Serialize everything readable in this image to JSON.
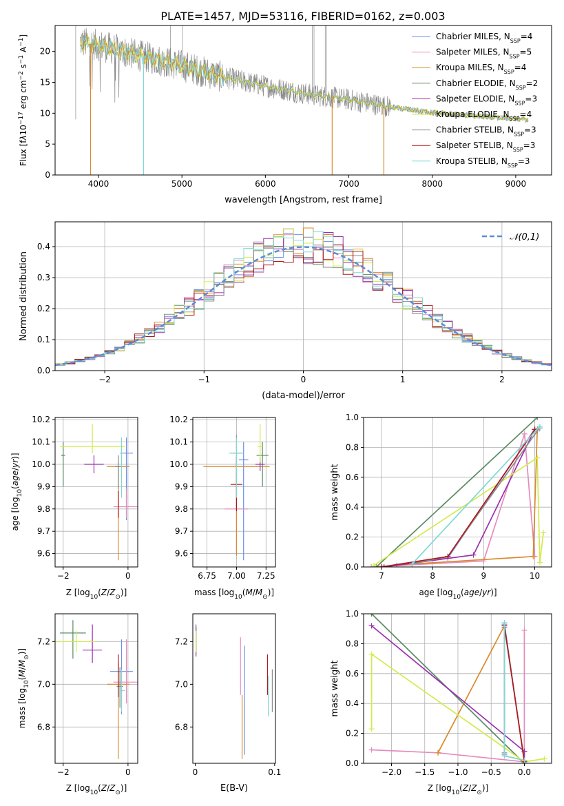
{
  "figure_title": "PLATE=1457, MJD=53116, FIBERID=0162, z=0.003",
  "colors": {
    "Chabrier MILES": "#6c8fe8",
    "Salpeter MILES": "#e58bbd",
    "Kroupa MILES": "#d98a2e",
    "Chabrier ELODIE": "#5a8a64",
    "Salpeter ELODIE": "#9b2fb0",
    "Kroupa ELODIE": "#d4ea4a",
    "Chabrier STELIB": "#8a8a8a",
    "Salpeter STELIB": "#b01a1a",
    "Kroupa STELIB": "#7fd8d4",
    "normal": "#5b8bd9",
    "grid": "#b0b0b0"
  },
  "legend_main": [
    {
      "name": "Chabrier MILES",
      "n": "4"
    },
    {
      "name": "Salpeter MILES",
      "n": "5"
    },
    {
      "name": "Kroupa MILES",
      "n": "4"
    },
    {
      "name": "Chabrier ELODIE",
      "n": "2"
    },
    {
      "name": "Salpeter ELODIE",
      "n": "3"
    },
    {
      "name": "Kroupa ELODIE",
      "n": "4"
    },
    {
      "name": "Chabrier STELIB",
      "n": "3"
    },
    {
      "name": "Salpeter STELIB",
      "n": "3"
    },
    {
      "name": "Kroupa STELIB",
      "n": "3"
    }
  ],
  "legend_n_label": "N",
  "legend_n_sub": "SSP",
  "chart_data": [
    {
      "id": "spectrum",
      "type": "line",
      "xlabel": "wavelength [Angstrom, rest frame]",
      "ylabel_html": "Flux [f<tspan font-style='italic'>λ</tspan>10<tspan baseline-shift='super' font-size='9'>−17</tspan> erg cm<tspan baseline-shift='super' font-size='9'>−2</tspan> s<tspan baseline-shift='super' font-size='9'>−1</tspan> A<tspan baseline-shift='super' font-size='9'>−1</tspan>]",
      "xlim": [
        3480,
        9430
      ],
      "ylim": [
        0,
        24.2
      ],
      "xticks": [
        4000,
        5000,
        6000,
        7000,
        8000,
        9000
      ],
      "yticks": [
        0,
        5,
        10,
        15,
        20
      ],
      "spectrum_knots": [
        [
          3780,
          21.5
        ],
        [
          4000,
          21.0
        ],
        [
          4500,
          19.3
        ],
        [
          5000,
          17.7
        ],
        [
          5500,
          15.8
        ],
        [
          6000,
          14.4
        ],
        [
          6500,
          13.1
        ],
        [
          7000,
          12.2
        ],
        [
          7500,
          11.0
        ],
        [
          8000,
          10.1
        ],
        [
          8500,
          9.6
        ],
        [
          9000,
          9.1
        ],
        [
          9150,
          9.0
        ]
      ],
      "model_dips": [
        {
          "model": "Kroupa MILES",
          "x": 3905,
          "to": 0
        },
        {
          "model": "Kroupa STELIB",
          "x": 4540,
          "to": 0
        },
        {
          "model": "Kroupa MILES",
          "x": 6800,
          "to": 0
        },
        {
          "model": "Kroupa MILES",
          "x": 7420,
          "to": 0
        }
      ],
      "emission_spikes": [
        6563,
        6583,
        6717,
        6731,
        4861,
        5007,
        3727
      ]
    },
    {
      "id": "residuals",
      "type": "histogram",
      "xlabel": "(data-model)/error",
      "ylabel": "Normed distribution",
      "xlim": [
        -2.5,
        2.5
      ],
      "ylim": [
        0,
        0.48
      ],
      "xticks": [
        -2,
        -1,
        0,
        1,
        2
      ],
      "yticks": [
        0.0,
        0.1,
        0.2,
        0.3,
        0.4
      ],
      "bin_width": 0.1,
      "legend": "𝒩(0,1)",
      "curve": "normal(0,1)"
    },
    {
      "id": "age_vs_Z",
      "type": "scatter",
      "xlabel": "Z [log10(Z/Z⊙)]",
      "ylabel": "age  [log10(age/yr)]",
      "xlim": [
        -2.25,
        0.3
      ],
      "ylim": [
        9.54,
        10.21
      ],
      "xticks": [
        -2,
        0
      ],
      "yticks": [
        9.6,
        9.7,
        9.8,
        9.9,
        10.0,
        10.1,
        10.2
      ],
      "points": [
        {
          "model": "Chabrier MILES",
          "x": -0.05,
          "y": 10.05,
          "xerr": 0.2,
          "yerr": [
            0.3,
            0.07
          ]
        },
        {
          "model": "Salpeter MILES",
          "x": -0.05,
          "y": 9.81,
          "xerr": 0.4,
          "yerr": [
            0.05,
            0.08
          ]
        },
        {
          "model": "Kroupa MILES",
          "x": -0.3,
          "y": 9.99,
          "xerr": 0.35,
          "yerr": [
            0.42,
            0.02
          ]
        },
        {
          "model": "Chabrier ELODIE",
          "x": -2.0,
          "y": 10.04,
          "xerr": 0.06,
          "yerr": [
            0.14,
            0.06
          ]
        },
        {
          "model": "Salpeter ELODIE",
          "x": -1.05,
          "y": 10.0,
          "xerr": 0.3,
          "yerr": [
            0.04,
            0.04
          ]
        },
        {
          "model": "Kroupa ELODIE",
          "x": -1.1,
          "y": 10.08,
          "xerr": 1.0,
          "yerr": [
            0.03,
            0.1
          ]
        },
        {
          "model": "Chabrier STELIB",
          "x": -0.3,
          "y": 9.99,
          "xerr": 0.1,
          "yerr": [
            0.1,
            0.05
          ]
        },
        {
          "model": "Salpeter STELIB",
          "x": -0.3,
          "y": 9.8,
          "xerr": 0.0,
          "yerr": [
            0.04,
            0.08
          ]
        },
        {
          "model": "Kroupa STELIB",
          "x": -0.2,
          "y": 10.05,
          "xerr": 0.05,
          "yerr": [
            0.2,
            0.07
          ]
        }
      ]
    },
    {
      "id": "age_vs_mass",
      "type": "scatter",
      "xlabel": "mass [log10(M/M⊙)]",
      "ylabel": "",
      "xlim": [
        6.63,
        7.33
      ],
      "ylim": [
        9.54,
        10.21
      ],
      "xticks": [
        6.75,
        7.0,
        7.25
      ],
      "xtick_labels": [
        "6.75",
        "7.00",
        "7.25"
      ],
      "yticks": [
        9.6,
        9.7,
        9.8,
        9.9,
        10.0,
        10.1,
        10.2
      ],
      "points": [
        {
          "model": "Chabrier MILES",
          "x": 7.06,
          "y": 10.02,
          "xerr": 0.04,
          "yerr": [
            0.45,
            0.08
          ]
        },
        {
          "model": "Salpeter MILES",
          "x": 7.0,
          "y": 9.8,
          "xerr": 0.1,
          "yerr": [
            0.2,
            0.05
          ]
        },
        {
          "model": "Kroupa MILES",
          "x": 7.0,
          "y": 9.99,
          "xerr": 0.28,
          "yerr": [
            0.4,
            0.05
          ]
        },
        {
          "model": "Chabrier ELODIE",
          "x": 7.22,
          "y": 10.04,
          "xerr": 0.05,
          "yerr": [
            0.14,
            0.06
          ]
        },
        {
          "model": "Salpeter ELODIE",
          "x": 7.2,
          "y": 10.0,
          "xerr": 0.04,
          "yerr": [
            0.03,
            0.03
          ]
        },
        {
          "model": "Kroupa ELODIE",
          "x": 7.2,
          "y": 10.08,
          "xerr": 0.02,
          "yerr": [
            0.07,
            0.1
          ]
        },
        {
          "model": "Chabrier STELIB",
          "x": 7.0,
          "y": 10.05,
          "xerr": 0.05,
          "yerr": [
            0.25,
            0.08
          ]
        },
        {
          "model": "Salpeter STELIB",
          "x": 7.0,
          "y": 9.91,
          "xerr": 0.05,
          "yerr": [
            0.12,
            0.12
          ]
        },
        {
          "model": "Kroupa STELIB",
          "x": 7.0,
          "y": 10.05,
          "xerr": 0.06,
          "yerr": [
            0.2,
            0.07
          ]
        }
      ]
    },
    {
      "id": "weight_vs_age",
      "type": "line",
      "xlabel": "age  [log10(age/yr)]",
      "ylabel": "mass weight",
      "xlim": [
        6.65,
        10.33
      ],
      "ylim": [
        0.0,
        1.0
      ],
      "xticks": [
        7,
        8,
        9,
        10
      ],
      "yticks": [
        0.0,
        0.2,
        0.4,
        0.6,
        0.8,
        1.0
      ],
      "series": [
        {
          "model": "Chabrier MILES",
          "x": [
            7.3,
            8.3,
            10.0,
            10.1
          ],
          "y": [
            0.01,
            0.06,
            0.92,
            0.93
          ]
        },
        {
          "model": "Salpeter MILES",
          "x": [
            6.8,
            9.0,
            9.8,
            10.0
          ],
          "y": [
            0.0,
            0.04,
            0.89,
            0.07
          ]
        },
        {
          "model": "Kroupa MILES",
          "x": [
            6.9,
            7.6,
            9.97,
            10.05
          ],
          "y": [
            0.0,
            0.02,
            0.07,
            0.92
          ]
        },
        {
          "model": "Chabrier ELODIE",
          "x": [
            6.9,
            10.05
          ],
          "y": [
            0.0,
            1.0
          ]
        },
        {
          "model": "Salpeter ELODIE",
          "x": [
            7.05,
            8.8,
            10.0
          ],
          "y": [
            0.0,
            0.08,
            0.92
          ]
        },
        {
          "model": "Kroupa ELODIE",
          "x": [
            6.85,
            10.05,
            10.1,
            10.17
          ],
          "y": [
            0.01,
            0.73,
            0.03,
            0.23
          ]
        },
        {
          "model": "Chabrier STELIB",
          "x": [
            7.6,
            8.3,
            10.05
          ],
          "y": [
            0.02,
            0.07,
            0.91
          ]
        },
        {
          "model": "Salpeter STELIB",
          "x": [
            7.0,
            8.3,
            10.0
          ],
          "y": [
            0.0,
            0.07,
            0.92
          ]
        },
        {
          "model": "Kroupa STELIB",
          "x": [
            7.6,
            10.1
          ],
          "y": [
            0.02,
            0.94
          ]
        }
      ]
    },
    {
      "id": "mass_vs_Z",
      "type": "scatter",
      "xlabel": "Z [log10(Z/Z⊙)]",
      "ylabel": "mass [log10(M/M⊙)]",
      "xlim": [
        -2.25,
        0.3
      ],
      "ylim": [
        6.63,
        7.33
      ],
      "xticks": [
        -2,
        0
      ],
      "yticks": [
        6.8,
        7.0,
        7.2
      ],
      "points": [
        {
          "model": "Chabrier MILES",
          "x": -0.2,
          "y": 7.06,
          "xerr": 0.35,
          "yerr": [
            0.2,
            0.15
          ]
        },
        {
          "model": "Salpeter MILES",
          "x": -0.05,
          "y": 7.01,
          "xerr": 0.4,
          "yerr": [
            0.1,
            0.2
          ]
        },
        {
          "model": "Kroupa MILES",
          "x": -0.3,
          "y": 7.0,
          "xerr": 0.35,
          "yerr": [
            0.35,
            0.1
          ]
        },
        {
          "model": "Chabrier ELODIE",
          "x": -1.7,
          "y": 7.24,
          "xerr": 0.4,
          "yerr": [
            0.12,
            0.06
          ]
        },
        {
          "model": "Salpeter ELODIE",
          "x": -1.1,
          "y": 7.16,
          "xerr": 0.3,
          "yerr": [
            0.06,
            0.12
          ]
        },
        {
          "model": "Kroupa ELODIE",
          "x": -1.6,
          "y": 7.2,
          "xerr": 0.6,
          "yerr": [
            0.05,
            0.05
          ]
        },
        {
          "model": "Chabrier STELIB",
          "x": -0.25,
          "y": 6.99,
          "xerr": 0.1,
          "yerr": [
            0.1,
            0.09
          ]
        },
        {
          "model": "Salpeter STELIB",
          "x": -0.3,
          "y": 7.04,
          "xerr": 0.0,
          "yerr": [
            0.1,
            0.1
          ]
        },
        {
          "model": "Kroupa STELIB",
          "x": -0.2,
          "y": 6.97,
          "xerr": 0.1,
          "yerr": [
            0.1,
            0.1
          ]
        }
      ]
    },
    {
      "id": "mass_vs_ebv",
      "type": "scatter",
      "xlabel": "E(B-V)",
      "ylabel": "",
      "xlim": [
        -0.003,
        0.101
      ],
      "ylim": [
        6.63,
        7.33
      ],
      "xticks": [
        0.0,
        0.1
      ],
      "yticks": [
        6.8,
        7.0,
        7.2
      ],
      "points": [
        {
          "model": "Chabrier MILES",
          "x": 0.062,
          "y": 6.97,
          "xerr": 0,
          "yerr": [
            0.3,
            0.21
          ]
        },
        {
          "model": "Salpeter MILES",
          "x": 0.057,
          "y": 7.05,
          "xerr": 0,
          "yerr": [
            0.1,
            0.17
          ]
        },
        {
          "model": "Kroupa MILES",
          "x": 0.059,
          "y": 6.9,
          "xerr": 0,
          "yerr": [
            0.25,
            0.05
          ]
        },
        {
          "model": "Chabrier ELODIE",
          "x": 0.001,
          "y": 7.22,
          "xerr": 0,
          "yerr": [
            0.08,
            0.06
          ]
        },
        {
          "model": "Salpeter ELODIE",
          "x": 0.001,
          "y": 7.2,
          "xerr": 0,
          "yerr": [
            0.07,
            0.07
          ]
        },
        {
          "model": "Kroupa ELODIE",
          "x": 0.001,
          "y": 7.2,
          "xerr": 0,
          "yerr": [
            0.05,
            0.05
          ]
        },
        {
          "model": "Chabrier STELIB",
          "x": 0.097,
          "y": 6.97,
          "xerr": 0,
          "yerr": [
            0.1,
            0.1
          ]
        },
        {
          "model": "Salpeter STELIB",
          "x": 0.091,
          "y": 7.0,
          "xerr": 0,
          "yerr": [
            0.05,
            0.14
          ]
        },
        {
          "model": "Kroupa STELIB",
          "x": 0.092,
          "y": 6.93,
          "xerr": 0,
          "yerr": [
            0.08,
            0.11
          ]
        }
      ]
    },
    {
      "id": "weight_vs_Z",
      "type": "line",
      "xlabel": "Z [log10(Z/Z⊙)]",
      "ylabel": "mass weight",
      "xlim": [
        -2.42,
        0.41
      ],
      "ylim": [
        0.0,
        1.0
      ],
      "xticks": [
        -2.0,
        -1.5,
        -1.0,
        -0.5,
        0.0
      ],
      "xtick_labels": [
        "−2.0",
        "−1.5",
        "−1.0",
        "−0.5",
        "0.0"
      ],
      "yticks": [
        0.0,
        0.2,
        0.4,
        0.6,
        0.8,
        1.0
      ],
      "series": [
        {
          "model": "Chabrier MILES",
          "x": [
            -0.3,
            -0.3,
            0.0
          ],
          "y": [
            0.06,
            0.93,
            0.01
          ]
        },
        {
          "model": "Salpeter MILES",
          "x": [
            -2.3,
            -1.3,
            0.0,
            0.0
          ],
          "y": [
            0.09,
            0.07,
            0.01,
            0.89
          ]
        },
        {
          "model": "Kroupa MILES",
          "x": [
            -1.3,
            -0.3,
            -0.3,
            0.0
          ],
          "y": [
            0.07,
            0.92,
            0.05,
            0.02
          ]
        },
        {
          "model": "Chabrier ELODIE",
          "x": [
            -2.3,
            0.0
          ],
          "y": [
            1.0,
            0.0
          ]
        },
        {
          "model": "Salpeter ELODIE",
          "x": [
            -2.3,
            0.0,
            0.0
          ],
          "y": [
            0.92,
            0.08,
            0.0
          ]
        },
        {
          "model": "Kroupa ELODIE",
          "x": [
            -2.3,
            -2.3,
            0.0,
            0.3
          ],
          "y": [
            0.23,
            0.73,
            0.01,
            0.03
          ]
        },
        {
          "model": "Chabrier STELIB",
          "x": [
            -0.3,
            -0.3,
            0.0
          ],
          "y": [
            0.07,
            0.91,
            0.02
          ]
        },
        {
          "model": "Salpeter STELIB",
          "x": [
            -0.3,
            0.0
          ],
          "y": [
            0.92,
            0.01
          ]
        },
        {
          "model": "Kroupa STELIB",
          "x": [
            -0.3,
            -0.3,
            0.0
          ],
          "y": [
            0.94,
            0.05,
            0.02
          ]
        }
      ]
    }
  ]
}
